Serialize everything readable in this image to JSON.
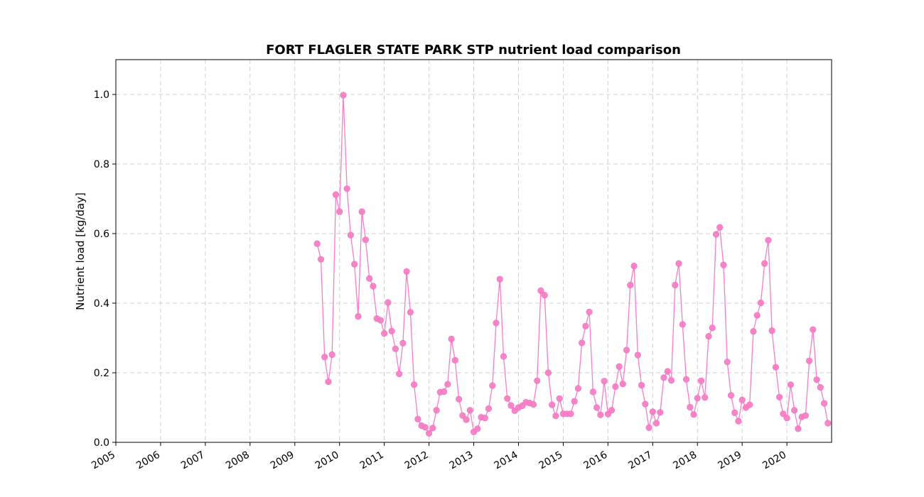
{
  "chart_data": {
    "type": "line",
    "title": "FORT FLAGLER STATE PARK STP nutrient load comparison",
    "xlabel": "",
    "ylabel": "Nutrient load [kg/day]",
    "xlim": [
      "2005-01-01",
      "2020-12-31"
    ],
    "ylim": [
      0,
      1.1
    ],
    "x_ticks": [
      "2005",
      "2006",
      "2007",
      "2008",
      "2009",
      "2010",
      "2011",
      "2012",
      "2013",
      "2014",
      "2015",
      "2016",
      "2017",
      "2018",
      "2019",
      "2020"
    ],
    "y_ticks": [
      "0.0",
      "0.2",
      "0.4",
      "0.6",
      "0.8",
      "1.0"
    ],
    "grid": true,
    "color": "#f77ec6",
    "series": [
      {
        "name": "",
        "x": [
          "2009-07",
          "2009-08",
          "2009-09",
          "2009-10",
          "2009-11",
          "2009-12",
          "2010-01",
          "2010-02",
          "2010-03",
          "2010-04",
          "2010-05",
          "2010-06",
          "2010-07",
          "2010-08",
          "2010-09",
          "2010-10",
          "2010-11",
          "2010-12",
          "2011-01",
          "2011-02",
          "2011-03",
          "2011-04",
          "2011-05",
          "2011-06",
          "2011-07",
          "2011-08",
          "2011-09",
          "2011-10",
          "2011-11",
          "2011-12",
          "2012-01",
          "2012-02",
          "2012-03",
          "2012-04",
          "2012-05",
          "2012-06",
          "2012-07",
          "2012-08",
          "2012-09",
          "2012-10",
          "2012-11",
          "2012-12",
          "2013-01",
          "2013-02",
          "2013-03",
          "2013-04",
          "2013-05",
          "2013-06",
          "2013-07",
          "2013-08",
          "2013-09",
          "2013-10",
          "2013-11",
          "2013-12",
          "2014-01",
          "2014-02",
          "2014-03",
          "2014-04",
          "2014-05",
          "2014-06",
          "2014-07",
          "2014-08",
          "2014-09",
          "2014-10",
          "2014-11",
          "2014-12",
          "2015-01",
          "2015-02",
          "2015-03",
          "2015-04",
          "2015-05",
          "2015-06",
          "2015-07",
          "2015-08",
          "2015-09",
          "2015-10",
          "2015-11",
          "2015-12",
          "2016-01",
          "2016-02",
          "2016-03",
          "2016-04",
          "2016-05",
          "2016-06",
          "2016-07",
          "2016-08",
          "2016-09",
          "2016-10",
          "2016-11",
          "2016-12",
          "2017-01",
          "2017-02",
          "2017-03",
          "2017-04",
          "2017-05",
          "2017-06",
          "2017-07",
          "2017-08",
          "2017-09",
          "2017-10",
          "2017-11",
          "2017-12",
          "2018-01",
          "2018-02",
          "2018-03",
          "2018-04",
          "2018-05",
          "2018-06",
          "2018-07",
          "2018-08",
          "2018-09",
          "2018-10",
          "2018-11",
          "2018-12",
          "2019-01",
          "2019-02",
          "2019-03",
          "2019-04",
          "2019-05",
          "2019-06",
          "2019-07",
          "2019-08",
          "2019-09",
          "2019-10",
          "2019-11",
          "2019-12",
          "2020-01",
          "2020-02",
          "2020-03",
          "2020-04",
          "2020-05",
          "2020-06",
          "2020-07",
          "2020-08",
          "2020-09",
          "2020-10",
          "2020-11",
          "2020-12"
        ],
        "values": [
          0.571,
          0.526,
          0.245,
          0.174,
          0.252,
          0.712,
          0.663,
          0.998,
          0.729,
          0.596,
          0.512,
          0.362,
          0.663,
          0.582,
          0.471,
          0.449,
          0.356,
          0.351,
          0.313,
          0.402,
          0.32,
          0.269,
          0.197,
          0.285,
          0.491,
          0.374,
          0.166,
          0.067,
          0.048,
          0.043,
          0.026,
          0.041,
          0.092,
          0.144,
          0.146,
          0.167,
          0.297,
          0.236,
          0.124,
          0.077,
          0.065,
          0.092,
          0.03,
          0.039,
          0.072,
          0.07,
          0.097,
          0.163,
          0.343,
          0.469,
          0.247,
          0.126,
          0.106,
          0.091,
          0.1,
          0.105,
          0.115,
          0.113,
          0.109,
          0.177,
          0.436,
          0.423,
          0.2,
          0.108,
          0.076,
          0.126,
          0.082,
          0.082,
          0.082,
          0.118,
          0.155,
          0.286,
          0.334,
          0.375,
          0.145,
          0.1,
          0.079,
          0.176,
          0.081,
          0.092,
          0.16,
          0.218,
          0.168,
          0.265,
          0.452,
          0.507,
          0.251,
          0.164,
          0.11,
          0.042,
          0.088,
          0.055,
          0.086,
          0.186,
          0.204,
          0.178,
          0.452,
          0.514,
          0.339,
          0.181,
          0.101,
          0.08,
          0.127,
          0.177,
          0.129,
          0.305,
          0.329,
          0.598,
          0.618,
          0.51,
          0.231,
          0.135,
          0.085,
          0.061,
          0.122,
          0.1,
          0.108,
          0.319,
          0.365,
          0.401,
          0.514,
          0.581,
          0.321,
          0.216,
          0.13,
          0.082,
          0.07,
          0.166,
          0.092,
          0.039,
          0.073,
          0.077,
          0.234,
          0.324,
          0.18,
          0.158,
          0.112,
          0.055
        ]
      }
    ]
  }
}
